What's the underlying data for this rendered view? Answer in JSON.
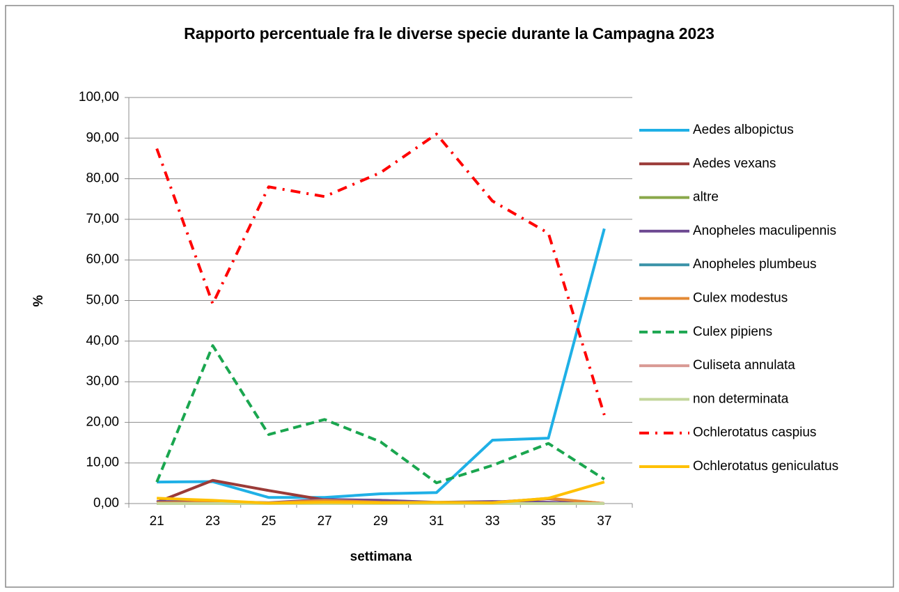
{
  "chart_data": {
    "type": "line",
    "title": "Rapporto percentuale fra le diverse specie durante la Campagna 2023",
    "x_label": "settimana",
    "y_label": "%",
    "categories": [
      "21",
      "23",
      "25",
      "27",
      "29",
      "31",
      "33",
      "35",
      "37"
    ],
    "ylim": [
      0,
      100
    ],
    "yticks": [
      {
        "value": 0,
        "label": "0,00"
      },
      {
        "value": 10,
        "label": "10,00"
      },
      {
        "value": 20,
        "label": "20,00"
      },
      {
        "value": 30,
        "label": "30,00"
      },
      {
        "value": 40,
        "label": "40,00"
      },
      {
        "value": 50,
        "label": "50,00"
      },
      {
        "value": 60,
        "label": "60,00"
      },
      {
        "value": 70,
        "label": "70,00"
      },
      {
        "value": 80,
        "label": "80,00"
      },
      {
        "value": 90,
        "label": "90,00"
      },
      {
        "value": 100,
        "label": "100,00"
      }
    ],
    "grid": true,
    "legend": "right",
    "series": [
      {
        "name": "Aedes albopictus",
        "color": "#1fb0e6",
        "dash": "solid",
        "values": [
          5.3,
          5.4,
          1.5,
          1.5,
          2.4,
          2.7,
          15.6,
          16.1,
          67.7
        ]
      },
      {
        "name": "Aedes vexans",
        "color": "#9b3b38",
        "dash": "solid",
        "values": [
          0.3,
          5.7,
          3.2,
          0.9,
          0.8,
          0.2,
          0.3,
          1.2,
          0
        ]
      },
      {
        "name": "altre",
        "color": "#8aa84a",
        "dash": "solid",
        "values": [
          0.1,
          0.1,
          0.1,
          0.1,
          0.1,
          0.1,
          0.1,
          0.1,
          0
        ]
      },
      {
        "name": "Anopheles maculipennis",
        "color": "#6e4a92",
        "dash": "solid",
        "values": [
          0.5,
          0.5,
          0.2,
          1.0,
          0.8,
          0.3,
          0.5,
          0.3,
          0
        ]
      },
      {
        "name": "Anopheles plumbeus",
        "color": "#3a93a8",
        "dash": "solid",
        "values": [
          0,
          0,
          0,
          0,
          0,
          0,
          0,
          0,
          0
        ]
      },
      {
        "name": "Culex modestus",
        "color": "#e38a35",
        "dash": "solid",
        "values": [
          0.2,
          0.3,
          0.1,
          0.8,
          0.3,
          0.2,
          0.2,
          1.3,
          0
        ]
      },
      {
        "name": "Culex pipiens",
        "color": "#1aa64f",
        "dash": "dashed",
        "values": [
          5.3,
          38.9,
          17.0,
          20.7,
          15.2,
          5.1,
          9.4,
          14.8,
          6.0
        ]
      },
      {
        "name": "Culiseta annulata",
        "color": "#d99a94",
        "dash": "solid",
        "values": [
          0,
          0,
          0,
          0,
          0,
          0,
          0,
          0,
          0
        ]
      },
      {
        "name": "non determinata",
        "color": "#c3d69b",
        "dash": "solid",
        "values": [
          0,
          0,
          0,
          0,
          0,
          0,
          0,
          0,
          0
        ]
      },
      {
        "name": "Ochlerotatus caspius",
        "color": "#ff0000",
        "dash": "dashdot",
        "values": [
          87.4,
          49.2,
          78.0,
          75.6,
          81.5,
          91.0,
          74.5,
          66.6,
          21.8
        ]
      },
      {
        "name": "Ochlerotatus geniculatus",
        "color": "#ffc000",
        "dash": "solid",
        "values": [
          1.3,
          0.8,
          0.1,
          0.3,
          0.2,
          0.3,
          0.2,
          1.3,
          5.3
        ]
      }
    ]
  }
}
